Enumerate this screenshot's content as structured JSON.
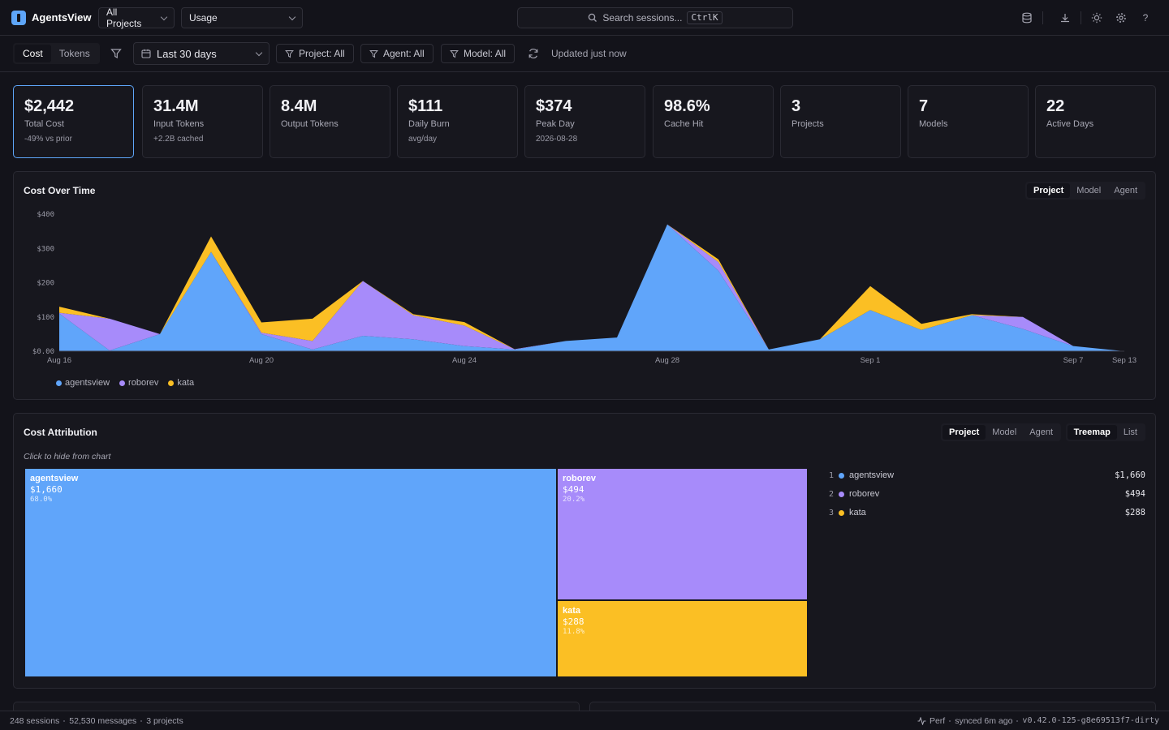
{
  "app": {
    "name": "AgentsView"
  },
  "header": {
    "project_select": "All Projects",
    "view_select": "Usage",
    "search_placeholder": "Search sessions...",
    "search_shortcut": "CtrlK",
    "icons": [
      "database-icon",
      "download-icon",
      "sun-icon",
      "gear-icon",
      "help-icon"
    ]
  },
  "filters": {
    "metric_tabs": [
      "Cost",
      "Tokens"
    ],
    "active_metric": "Cost",
    "date_range": "Last 30 days",
    "project": "Project: All",
    "agent": "Agent: All",
    "model": "Model: All",
    "updated": "Updated just now"
  },
  "kpis": [
    {
      "value": "$2,442",
      "label": "Total Cost",
      "sub": "-49% vs prior"
    },
    {
      "value": "31.4M",
      "label": "Input Tokens",
      "sub": "+2.2B cached"
    },
    {
      "value": "8.4M",
      "label": "Output Tokens",
      "sub": ""
    },
    {
      "value": "$111",
      "label": "Daily Burn",
      "sub": "avg/day"
    },
    {
      "value": "$374",
      "label": "Peak Day",
      "sub": "2026-08-28"
    },
    {
      "value": "98.6%",
      "label": "Cache Hit",
      "sub": ""
    },
    {
      "value": "3",
      "label": "Projects",
      "sub": ""
    },
    {
      "value": "7",
      "label": "Models",
      "sub": ""
    },
    {
      "value": "22",
      "label": "Active Days",
      "sub": ""
    }
  ],
  "cost_over_time": {
    "title": "Cost Over Time",
    "tabs": [
      "Project",
      "Model",
      "Agent"
    ],
    "active_tab": "Project"
  },
  "chart_data": {
    "type": "area",
    "stacked": true,
    "title": "Cost Over Time",
    "y_ticks": [
      "$0.00",
      "$100",
      "$200",
      "$300",
      "$400"
    ],
    "ylim": [
      0,
      400
    ],
    "x_tick_labels": [
      {
        "label": "Aug 16",
        "index": 0
      },
      {
        "label": "Aug 20",
        "index": 4
      },
      {
        "label": "Aug 24",
        "index": 8
      },
      {
        "label": "Aug 28",
        "index": 12
      },
      {
        "label": "Sep 1",
        "index": 16
      },
      {
        "label": "Sep 7",
        "index": 20
      },
      {
        "label": "Sep 13",
        "index": 21
      }
    ],
    "x": [
      "Aug 16",
      "Aug 17",
      "Aug 18",
      "Aug 19",
      "Aug 20",
      "Aug 21",
      "Aug 22",
      "Aug 23",
      "Aug 24",
      "Aug 25",
      "Aug 26",
      "Aug 27",
      "Aug 28",
      "Aug 29",
      "Aug 30",
      "Aug 31",
      "Sep 1",
      "Sep 2",
      "Sep 3",
      "Sep 4",
      "Sep 7",
      "Sep 13"
    ],
    "series": [
      {
        "name": "agentsview",
        "color": "#60a5fa",
        "values": [
          110,
          2,
          50,
          290,
          50,
          5,
          45,
          35,
          15,
          5,
          30,
          40,
          370,
          235,
          5,
          35,
          120,
          62,
          105,
          65,
          15,
          0
        ]
      },
      {
        "name": "roborev",
        "color": "#a78bfa",
        "values": [
          2,
          93,
          0,
          0,
          4,
          25,
          160,
          70,
          60,
          1,
          0,
          0,
          0,
          25,
          0,
          0,
          0,
          0,
          0,
          35,
          0,
          0
        ]
      },
      {
        "name": "kata",
        "color": "#fbbf24",
        "values": [
          18,
          0,
          0,
          45,
          30,
          65,
          0,
          3,
          10,
          0,
          0,
          0,
          0,
          8,
          0,
          0,
          70,
          18,
          3,
          0,
          0,
          0
        ]
      }
    ],
    "legend": "bottom-left",
    "grid": false
  },
  "cost_attribution": {
    "title": "Cost Attribution",
    "group_tabs": [
      "Project",
      "Model",
      "Agent"
    ],
    "active_group": "Project",
    "view_tabs": [
      "Treemap",
      "List"
    ],
    "active_view": "Treemap",
    "hint": "Click to hide from chart",
    "items": [
      {
        "rank": "1",
        "name": "agentsview",
        "value": "$1,660",
        "percent": "68.0%",
        "color": "#60a5fa"
      },
      {
        "rank": "2",
        "name": "roborev",
        "value": "$494",
        "percent": "20.2%",
        "color": "#a78bfa"
      },
      {
        "rank": "3",
        "name": "kata",
        "value": "$288",
        "percent": "11.8%",
        "color": "#fbbf24"
      }
    ]
  },
  "status": {
    "sessions": "248 sessions",
    "messages": "52,530 messages",
    "projects": "3 projects",
    "perf": "Perf",
    "synced": "synced 6m ago",
    "version": "v0.42.0-125-g8e69513f7-dirty"
  }
}
